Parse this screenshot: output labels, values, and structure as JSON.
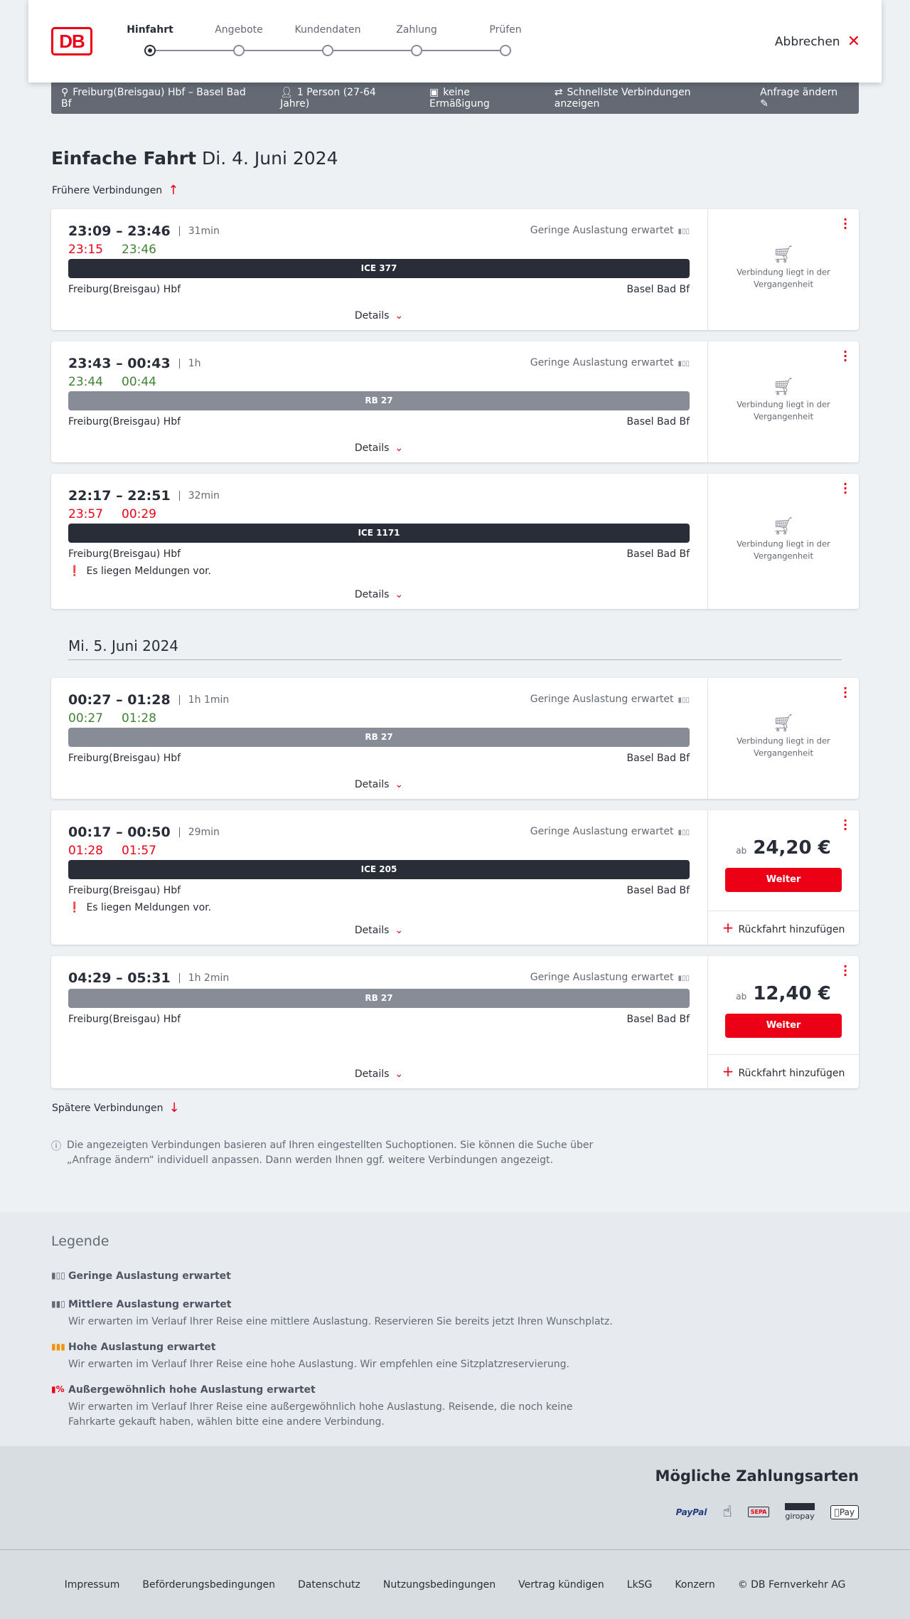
{
  "header": {
    "steps": [
      {
        "label": "Hinfahrt",
        "active": true
      },
      {
        "label": "Angebote"
      },
      {
        "label": "Kundendaten"
      },
      {
        "label": "Zahlung"
      },
      {
        "label": "Prüfen"
      }
    ],
    "cancel": "Abbrechen",
    "logo": "DB"
  },
  "search": {
    "route": "Freiburg(Breisgau) Hbf – Basel Bad Bf",
    "persons": "1 Person (27-64 Jahre)",
    "discount": "keine Ermäßigung",
    "fastest": "Schnellste Verbindungen anzeigen",
    "change": "Anfrage ändern"
  },
  "title": {
    "type": "Einfache Fahrt",
    "date": "Di. 4. Juni 2024"
  },
  "earlier": "Frühere Verbindungen",
  "later": "Spätere Verbindungen",
  "date2": "Mi. 5. Juni 2024",
  "colors": {
    "accent": "#ec0016",
    "ice": "#282d37",
    "regional": "#878c96",
    "delay": "#ec0016",
    "ontime": "#408335"
  },
  "connections": [
    {
      "times": "23:09 – 23:46",
      "duration": "31min",
      "rt": [
        {
          "t": "23:15",
          "c": "red"
        },
        {
          "t": "23:46",
          "c": "green"
        }
      ],
      "load": "Geringe Auslastung erwartet",
      "train": "ICE 377",
      "kind": "ice",
      "from": "Freiburg(Breisgau) Hbf",
      "to": "Basel Bad Bf",
      "details": "Details",
      "past": "Verbindung liegt in der Vergangenheit"
    },
    {
      "times": "23:43 – 00:43",
      "duration": "1h",
      "rt": [
        {
          "t": "23:44",
          "c": "green"
        },
        {
          "t": "00:44",
          "c": "green"
        }
      ],
      "load": "Geringe Auslastung erwartet",
      "train": "RB 27",
      "kind": "rb",
      "from": "Freiburg(Breisgau) Hbf",
      "to": "Basel Bad Bf",
      "details": "Details",
      "past": "Verbindung liegt in der Vergangenheit"
    },
    {
      "times": "22:17 – 22:51",
      "duration": "32min",
      "rt": [
        {
          "t": "23:57",
          "c": "red"
        },
        {
          "t": "00:29",
          "c": "red"
        }
      ],
      "train": "ICE 1171",
      "kind": "ice",
      "from": "Freiburg(Breisgau) Hbf",
      "to": "Basel Bad Bf",
      "message": "Es liegen Meldungen vor.",
      "details": "Details",
      "past": "Verbindung liegt in der Vergangenheit"
    },
    {
      "times": "00:27 – 01:28",
      "duration": "1h 1min",
      "rt": [
        {
          "t": "00:27",
          "c": "green"
        },
        {
          "t": "01:28",
          "c": "green"
        }
      ],
      "load": "Geringe Auslastung erwartet",
      "train": "RB 27",
      "kind": "rb",
      "from": "Freiburg(Breisgau) Hbf",
      "to": "Basel Bad Bf",
      "details": "Details",
      "past": "Verbindung liegt in der Vergangenheit"
    },
    {
      "times": "00:17 – 00:50",
      "duration": "29min",
      "rt": [
        {
          "t": "01:28",
          "c": "red"
        },
        {
          "t": "01:57",
          "c": "red"
        }
      ],
      "load": "Geringe Auslastung erwartet",
      "train": "ICE 205",
      "kind": "ice",
      "from": "Freiburg(Breisgau) Hbf",
      "to": "Basel Bad Bf",
      "message": "Es liegen Meldungen vor.",
      "details": "Details",
      "price_prefix": "ab",
      "price": "24,20 €",
      "button": "Weiter",
      "return": "Rückfahrt hinzufügen"
    },
    {
      "times": "04:29 – 05:31",
      "duration": "1h 2min",
      "rt": [],
      "load": "Geringe Auslastung erwartet",
      "train": "RB 27",
      "kind": "rb",
      "from": "Freiburg(Breisgau) Hbf",
      "to": "Basel Bad Bf",
      "details": "Details",
      "price_prefix": "ab",
      "price": "12,40 €",
      "button": "Weiter",
      "return": "Rückfahrt hinzufügen"
    }
  ],
  "note": "Die angezeigten Verbindungen basieren auf Ihren eingestellten Suchoptionen. Sie können die Suche über „Anfrage ändern“ individuell anpassen. Dann werden Ihnen ggf. weitere Verbindungen angezeigt.",
  "legend": {
    "title": "Legende",
    "items": [
      {
        "title": "Geringe Auslastung erwartet",
        "text": "",
        "color": "#646973"
      },
      {
        "title": "Mittlere Auslastung erwartet",
        "text": "Wir erwarten im Verlauf Ihrer Reise eine mittlere Auslastung. Reservieren Sie bereits jetzt Ihren Wunschplatz.",
        "color": "#646973"
      },
      {
        "title": "Hohe Auslastung erwartet",
        "text": "Wir erwarten im Verlauf Ihrer Reise eine hohe Auslastung. Wir empfehlen eine Sitzplatzreservierung.",
        "color": "#f39200"
      },
      {
        "title": "Außergewöhnlich hohe Auslastung erwartet",
        "text": "Wir erwarten im Verlauf Ihrer Reise eine außergewöhnlich hohe Auslastung. Reisende, die noch keine Fahrkarte gekauft haben, wählen bitte eine andere Verbindung.",
        "color": "#ec0016"
      }
    ]
  },
  "payment": {
    "title": "Mögliche Zahlungsarten",
    "methods": [
      "PayPal",
      "Kreditkarte",
      "SEPA",
      "giropay",
      "Pay"
    ]
  },
  "footer": [
    "Impressum",
    "Beförderungsbedingungen",
    "Datenschutz",
    "Nutzungsbedingungen",
    "Vertrag kündigen",
    "LkSG",
    "Konzern",
    "© DB Fernverkehr AG"
  ]
}
